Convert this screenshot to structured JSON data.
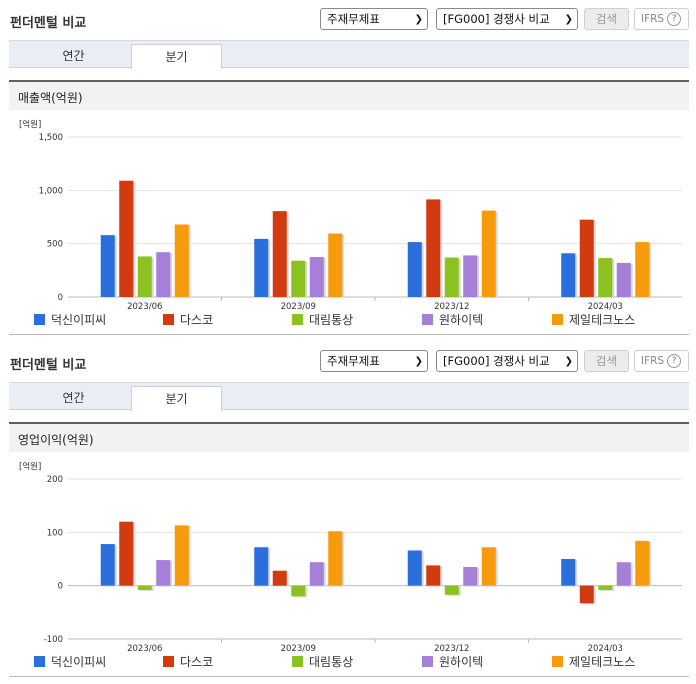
{
  "sections": [
    {
      "title": "펀더멘털 비교",
      "report_select": "주재무제표",
      "group_select": "[FG000] 경쟁사 비교",
      "search_label": "검색",
      "ifrs_label": "IFRS",
      "help_label": "?",
      "tabs": [
        {
          "label": "연간"
        },
        {
          "label": "분기"
        }
      ],
      "active_tab": "분기",
      "panel_title": "매출액(억원)",
      "unit_label": "[억원]"
    },
    {
      "title": "펀더멘털 비교",
      "report_select": "주재무제표",
      "group_select": "[FG000] 경쟁사 비교",
      "search_label": "검색",
      "ifrs_label": "IFRS",
      "help_label": "?",
      "tabs": [
        {
          "label": "연간"
        },
        {
          "label": "분기"
        }
      ],
      "active_tab": "분기",
      "panel_title": "영업이익(억원)",
      "unit_label": "[억원]"
    }
  ],
  "colors": {
    "덕신이피씨": "#2a6fdb",
    "다스코": "#d13b0f",
    "대림통상": "#8cc21f",
    "원하이텍": "#a67fd8",
    "제일테크노스": "#f79a0c"
  },
  "chart_data": [
    {
      "type": "bar",
      "categories": [
        "2023/06",
        "2023/09",
        "2023/12",
        "2024/03"
      ],
      "ylim": [
        0,
        1500
      ],
      "yticks": [
        0,
        500,
        1000,
        1500
      ],
      "ytick_labels": [
        "0",
        "500",
        "1,000",
        "1,500"
      ],
      "ylabel": "[억원]",
      "grid": true,
      "legend": "bottom",
      "series": [
        {
          "name": "덕신이피씨",
          "values": [
            580,
            545,
            515,
            410
          ]
        },
        {
          "name": "다스코",
          "values": [
            1090,
            805,
            915,
            725
          ]
        },
        {
          "name": "대림통상",
          "values": [
            380,
            340,
            370,
            365
          ]
        },
        {
          "name": "원하이텍",
          "values": [
            420,
            375,
            390,
            320
          ]
        },
        {
          "name": "제일테크노스",
          "values": [
            680,
            595,
            810,
            515
          ]
        }
      ]
    },
    {
      "type": "bar",
      "categories": [
        "2023/06",
        "2023/09",
        "2023/12",
        "2024/03"
      ],
      "ylim": [
        -100,
        200
      ],
      "yticks": [
        -100,
        0,
        100,
        200
      ],
      "ytick_labels": [
        "-100",
        "0",
        "100",
        "200"
      ],
      "ylabel": "[억원]",
      "grid": true,
      "legend": "bottom",
      "series": [
        {
          "name": "덕신이피씨",
          "values": [
            78,
            72,
            66,
            50
          ]
        },
        {
          "name": "다스코",
          "values": [
            120,
            28,
            38,
            -33
          ]
        },
        {
          "name": "대림통상",
          "values": [
            -8,
            -20,
            -17,
            -8
          ]
        },
        {
          "name": "원하이텍",
          "values": [
            48,
            44,
            35,
            44
          ]
        },
        {
          "name": "제일테크노스",
          "values": [
            113,
            102,
            72,
            84
          ]
        }
      ]
    }
  ]
}
